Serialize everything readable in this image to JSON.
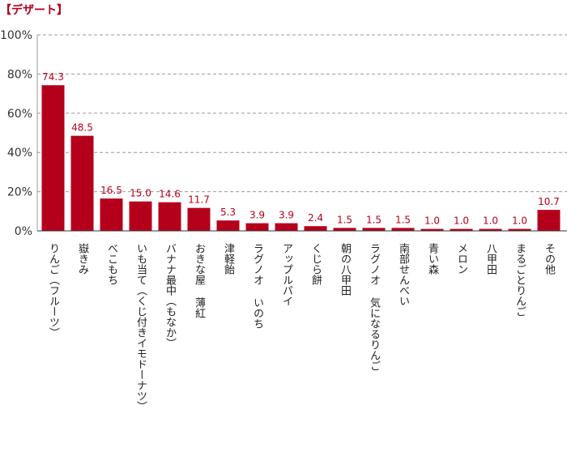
{
  "chart_data": {
    "type": "bar",
    "title": "【デザート】",
    "xlabel": "",
    "ylabel": "",
    "ylim": [
      0,
      100
    ],
    "yticks": [
      "0%",
      "20%",
      "40%",
      "60%",
      "80%",
      "100%"
    ],
    "grid": true,
    "categories": [
      "りんご（フルーツ）",
      "嶽きみ",
      "べこもち",
      "いも当て（くじ付きイモドーナツ）",
      "バナナ最中（もなか）",
      "おきな屋 薄紅",
      "津軽飴",
      "ラグノオ いのち",
      "アップルパイ",
      "くじら餅",
      "朝の八甲田",
      "ラグノオ 気になるりんご",
      "南部せんべい",
      "青い森",
      "メロン",
      "八甲田",
      "まるごとりんご",
      "その他"
    ],
    "values": [
      74.3,
      48.5,
      16.5,
      15.0,
      14.6,
      11.7,
      5.3,
      3.9,
      3.9,
      2.4,
      1.5,
      1.5,
      1.5,
      1.0,
      1.0,
      1.0,
      1.0,
      10.7
    ],
    "value_labels": [
      "74.3",
      "48.5",
      "16.5",
      "15.0",
      "14.6",
      "11.7",
      "5.3",
      "3.9",
      "3.9",
      "2.4",
      "1.5",
      "1.5",
      "1.5",
      "1.0",
      "1.0",
      "1.0",
      "1.0",
      "10.7"
    ],
    "colors": {
      "bar": "#b5001c",
      "label": "#b5001c",
      "title": "#b5001c",
      "axis": "#333333",
      "grid": "#999999"
    }
  }
}
